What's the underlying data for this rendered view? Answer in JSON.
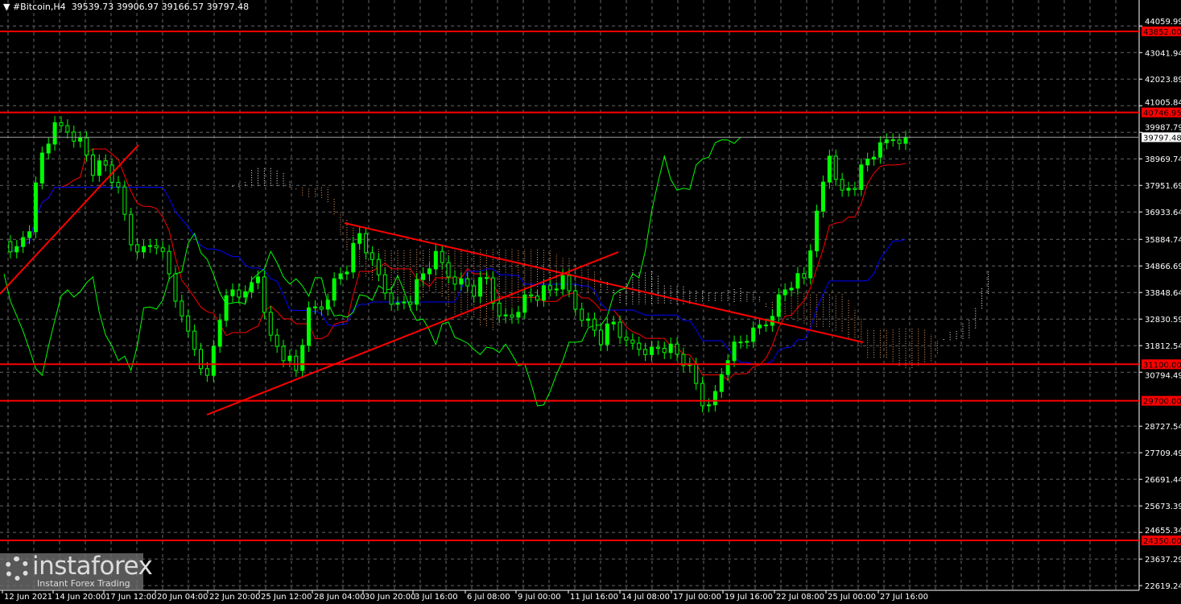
{
  "header": {
    "symbol": "#Bitcoin,H4",
    "ohlc": "39539.73 39906.97 39166.57 39797.48"
  },
  "logo": {
    "name": "instaforex",
    "tagline": "Instant Forex Trading"
  },
  "colors": {
    "background": "#000000",
    "bull": "#00ff00",
    "bear": "#00ff00",
    "tenkan": "#ff0000",
    "kijun": "#0000ff",
    "chikou": "#00ff00",
    "cloud_up": "#ffffff",
    "cloud_down": "#f4a460",
    "levels": "#ff0000",
    "grid": "#808080"
  },
  "chart_data": {
    "type": "candlestick",
    "indicator": "Ichimoku",
    "grid": true,
    "ylim": [
      22400,
      44250
    ],
    "y_ticks": [
      "44059.99",
      "43041.94",
      "42023.89",
      "41005.84",
      "39987.79",
      "38969.74",
      "37951.69",
      "36933.64",
      "35884.74",
      "34866.69",
      "33848.64",
      "32830.59",
      "31812.54",
      "30794.49",
      "28727.54",
      "27709.49",
      "26691.44",
      "25673.39",
      "24655.34",
      "23637.29",
      "22619.24"
    ],
    "x_ticks": [
      "12 Jun 2021",
      "14 Jun 20:00",
      "17 Jun 12:00",
      "20 Jun 04:00",
      "22 Jun 20:00",
      "25 Jun 12:00",
      "28 Jun 04:00",
      "30 Jun 20:00",
      "3 Jul 16:00",
      "6 Jul 08:00",
      "9 Jul 00:00",
      "11 Jul 16:00",
      "14 Jul 08:00",
      "17 Jul 00:00",
      "19 Jul 16:00",
      "22 Jul 08:00",
      "25 Jul 00:00",
      "27 Jul 16:00"
    ],
    "levels": [
      "43852.00",
      "40746.95",
      "31100.00",
      "29700.00",
      "24350.00"
    ],
    "current_price": "39797.48",
    "closes_approx": [
      35799,
      35490,
      36416,
      39193,
      40118,
      40118,
      39656,
      38576,
      38731,
      37650,
      35799,
      35490,
      35799,
      34565,
      32713,
      31788,
      30554,
      33022,
      33948,
      33639,
      34565,
      32096,
      31479,
      30862,
      33022,
      33330,
      34256,
      34873,
      36107,
      34873,
      33948,
      33330,
      33639,
      34565,
      35182,
      34565,
      34256,
      33948,
      34410,
      32713,
      33022,
      33639,
      33793,
      33948,
      34256,
      33330,
      32713,
      32096,
      32713,
      31788,
      31788,
      31634,
      31788,
      31479,
      30862,
      29628,
      29937,
      31479,
      31942,
      32251,
      32713,
      33639,
      34256,
      34410,
      36724,
      39193,
      37650,
      38034,
      38959,
      39347,
      39810,
      39797
    ]
  }
}
